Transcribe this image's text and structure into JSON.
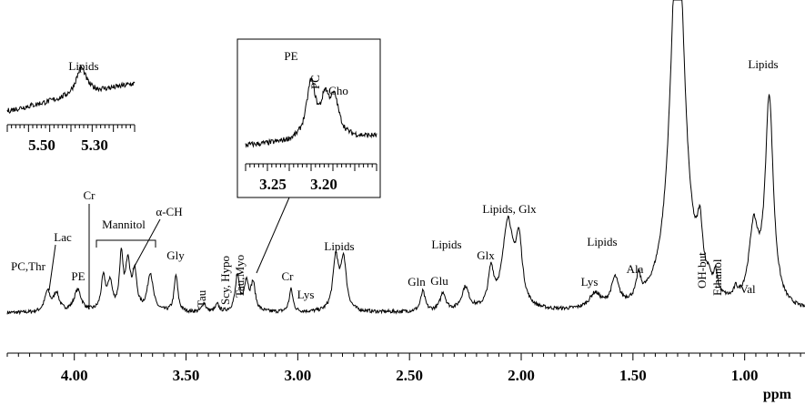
{
  "chart_data": {
    "type": "line",
    "title": "",
    "xlabel": "ppm",
    "ylabel": "",
    "x_axis": {
      "range": [
        4.3,
        0.73
      ],
      "reversed": true,
      "ticks": [
        "4.00",
        "3.50",
        "3.00",
        "2.50",
        "2.00",
        "1.50",
        "1.00"
      ]
    },
    "grid": false,
    "legend": "none",
    "peaks": [
      {
        "ppm": 4.12,
        "height": 22,
        "width": 0.015
      },
      {
        "ppm": 4.08,
        "height": 20,
        "width": 0.015
      },
      {
        "ppm": 3.985,
        "height": 24,
        "width": 0.02
      },
      {
        "ppm": 3.87,
        "height": 36,
        "width": 0.012
      },
      {
        "ppm": 3.84,
        "height": 30,
        "width": 0.012
      },
      {
        "ppm": 3.79,
        "height": 58,
        "width": 0.01
      },
      {
        "ppm": 3.76,
        "height": 52,
        "width": 0.012
      },
      {
        "ppm": 3.73,
        "height": 40,
        "width": 0.012
      },
      {
        "ppm": 3.66,
        "height": 42,
        "width": 0.015
      },
      {
        "ppm": 3.545,
        "height": 40,
        "width": 0.01
      },
      {
        "ppm": 3.42,
        "height": 10,
        "width": 0.01
      },
      {
        "ppm": 3.36,
        "height": 8,
        "width": 0.01
      },
      {
        "ppm": 3.27,
        "height": 38,
        "width": 0.012
      },
      {
        "ppm": 3.23,
        "height": 32,
        "width": 0.012
      },
      {
        "ppm": 3.2,
        "height": 30,
        "width": 0.012
      },
      {
        "ppm": 3.03,
        "height": 25,
        "width": 0.01
      },
      {
        "ppm": 2.83,
        "height": 58,
        "width": 0.015
      },
      {
        "ppm": 2.795,
        "height": 56,
        "width": 0.015
      },
      {
        "ppm": 2.44,
        "height": 22,
        "width": 0.012
      },
      {
        "ppm": 2.35,
        "height": 20,
        "width": 0.015
      },
      {
        "ppm": 2.25,
        "height": 25,
        "width": 0.02
      },
      {
        "ppm": 2.135,
        "height": 40,
        "width": 0.015
      },
      {
        "ppm": 2.06,
        "height": 95,
        "width": 0.028
      },
      {
        "ppm": 2.01,
        "height": 68,
        "width": 0.018
      },
      {
        "ppm": 1.67,
        "height": 16,
        "width": 0.03
      },
      {
        "ppm": 1.58,
        "height": 30,
        "width": 0.02
      },
      {
        "ppm": 1.475,
        "height": 25,
        "width": 0.012
      },
      {
        "ppm": 1.3,
        "height": 440,
        "width": 0.038
      },
      {
        "ppm": 1.2,
        "height": 58,
        "width": 0.015
      },
      {
        "ppm": 1.16,
        "height": 12,
        "width": 0.01
      },
      {
        "ppm": 1.13,
        "height": 22,
        "width": 0.01
      },
      {
        "ppm": 1.04,
        "height": 10,
        "width": 0.01
      },
      {
        "ppm": 0.96,
        "height": 80,
        "width": 0.025
      },
      {
        "ppm": 0.89,
        "height": 228,
        "width": 0.022
      }
    ],
    "annotations": [
      {
        "text": "PC,Thr",
        "ppm": 4.12,
        "rotated": false
      },
      {
        "text": "Lac",
        "ppm": 4.1,
        "rotated": false
      },
      {
        "text": "PE",
        "ppm": 3.985,
        "rotated": false
      },
      {
        "text": "Cr",
        "ppm": 3.92,
        "rotated": false
      },
      {
        "text": "Mannitol",
        "ppm": 3.79,
        "rotated": false
      },
      {
        "text": "α-CH",
        "ppm": 3.75,
        "rotated": false
      },
      {
        "text": "Gly",
        "ppm": 3.545,
        "rotated": false
      },
      {
        "text": "Tau",
        "ppm": 3.42,
        "rotated": true
      },
      {
        "text": "Scy, Hypo",
        "ppm": 3.35,
        "rotated": true
      },
      {
        "text": "Tau,Myo",
        "ppm": 3.27,
        "rotated": true
      },
      {
        "text": "Cr",
        "ppm": 3.03,
        "rotated": false
      },
      {
        "text": "Lys",
        "ppm": 3.0,
        "rotated": false
      },
      {
        "text": "Lipids",
        "ppm": 2.83,
        "rotated": false
      },
      {
        "text": "Gln",
        "ppm": 2.44,
        "rotated": false
      },
      {
        "text": "Glu",
        "ppm": 2.35,
        "rotated": false
      },
      {
        "text": "Lipids",
        "ppm": 2.25,
        "rotated": false
      },
      {
        "text": "Glx",
        "ppm": 2.135,
        "rotated": false
      },
      {
        "text": "Lipids, Glx",
        "ppm": 2.06,
        "rotated": false
      },
      {
        "text": "Lys",
        "ppm": 1.67,
        "rotated": false
      },
      {
        "text": "Lipids",
        "ppm": 1.58,
        "rotated": false
      },
      {
        "text": "Ala",
        "ppm": 1.475,
        "rotated": false
      },
      {
        "text": "OH-but",
        "ppm": 1.2,
        "rotated": true
      },
      {
        "text": "Ethanol",
        "ppm": 1.16,
        "rotated": true
      },
      {
        "text": "Val",
        "ppm": 1.04,
        "rotated": false
      },
      {
        "text": "Lipids",
        "ppm": 0.89,
        "rotated": false
      }
    ],
    "insets": [
      {
        "name": "lipids-5.3",
        "x_ticks": [
          "5.50",
          "5.30"
        ],
        "range": [
          5.6,
          5.1
        ],
        "peaks": [
          {
            "ppm": 5.31,
            "height": 30,
            "width": 0.025
          }
        ],
        "labels": [
          {
            "text": "Lipids",
            "ppm": 5.31
          }
        ]
      },
      {
        "name": "choline-region",
        "x_ticks": [
          "3.25",
          "3.20"
        ],
        "range": [
          3.29,
          3.15
        ],
        "peaks": [
          {
            "ppm": 3.22,
            "height": 62,
            "width": 0.006
          },
          {
            "ppm": 3.205,
            "height": 38,
            "width": 0.005
          },
          {
            "ppm": 3.195,
            "height": 40,
            "width": 0.006
          }
        ],
        "labels": [
          {
            "text": "PE",
            "ppm": 3.225
          },
          {
            "text": "PC",
            "ppm": 3.208,
            "rotated": true
          },
          {
            "text": "Cho",
            "ppm": 3.192
          }
        ]
      }
    ]
  }
}
